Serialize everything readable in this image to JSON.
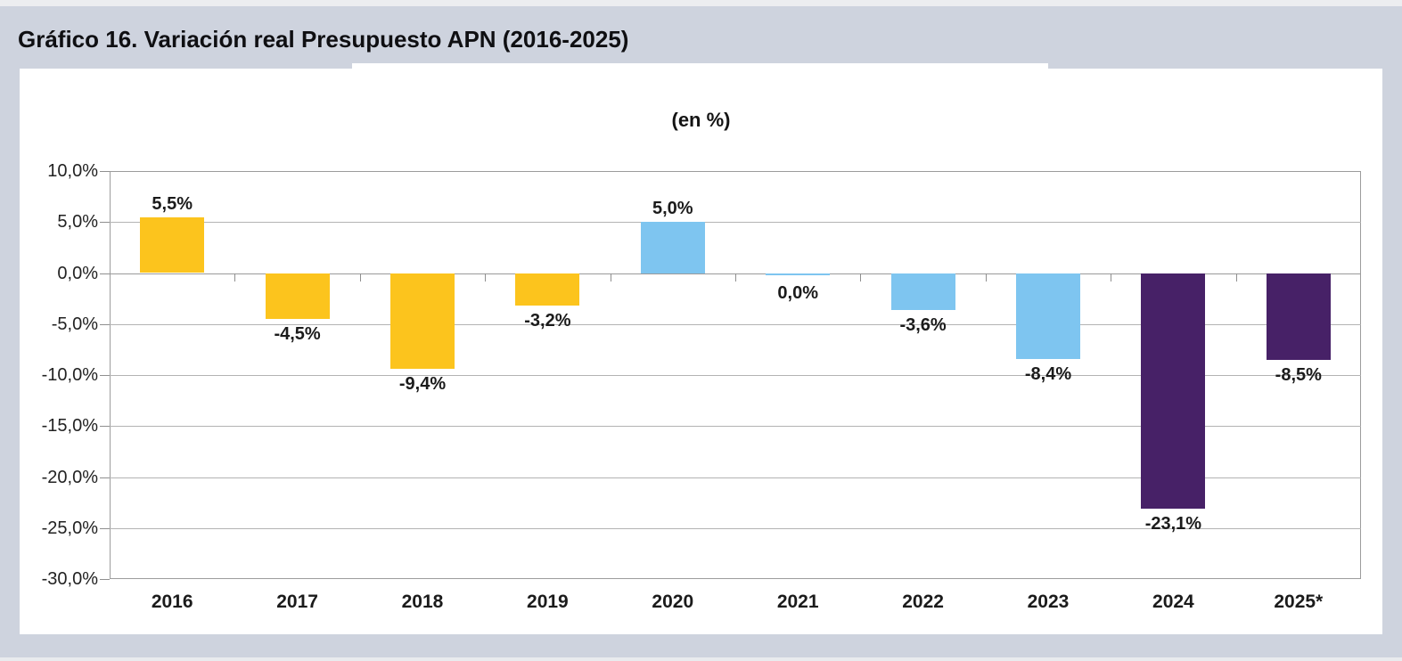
{
  "page": {
    "title": "Gráfico 16. Variación real Presupuesto APN (2016-2025)",
    "colors": {
      "background": "#ced3de",
      "top_strip": "#ecedf0",
      "bottom_strip": "#e9ebee",
      "panel": "#ffffff"
    }
  },
  "chart_data": {
    "type": "bar",
    "title": "(en %)",
    "categories": [
      "2016",
      "2017",
      "2018",
      "2019",
      "2020",
      "2021",
      "2022",
      "2023",
      "2024",
      "2025*"
    ],
    "values": [
      5.5,
      -4.5,
      -9.4,
      -3.2,
      5.0,
      0.0,
      -3.6,
      -8.4,
      -23.1,
      -8.5
    ],
    "value_labels": [
      "5,5%",
      "-4,5%",
      "-9,4%",
      "-3,2%",
      "5,0%",
      "0,0%",
      "-3,6%",
      "-8,4%",
      "-23,1%",
      "-8,5%"
    ],
    "bar_color_keys": [
      "yellow",
      "yellow",
      "yellow",
      "yellow",
      "blue",
      "blue",
      "blue",
      "blue",
      "purple",
      "purple"
    ],
    "colors": {
      "yellow": "#fcc41d",
      "blue": "#7ec5f0",
      "purple": "#472167",
      "gridline": "#b3b3b3",
      "axis": "#9c9c9c"
    },
    "xlabel": "",
    "ylabel": "",
    "ylim": [
      -30,
      10
    ],
    "ytick_step": 5,
    "ytick_labels": [
      "10,0%",
      "5,0%",
      "0,0%",
      "-5,0%",
      "-10,0%",
      "-15,0%",
      "-20,0%",
      "-25,0%",
      "-30,0%"
    ],
    "grid": true,
    "legend": "none"
  }
}
